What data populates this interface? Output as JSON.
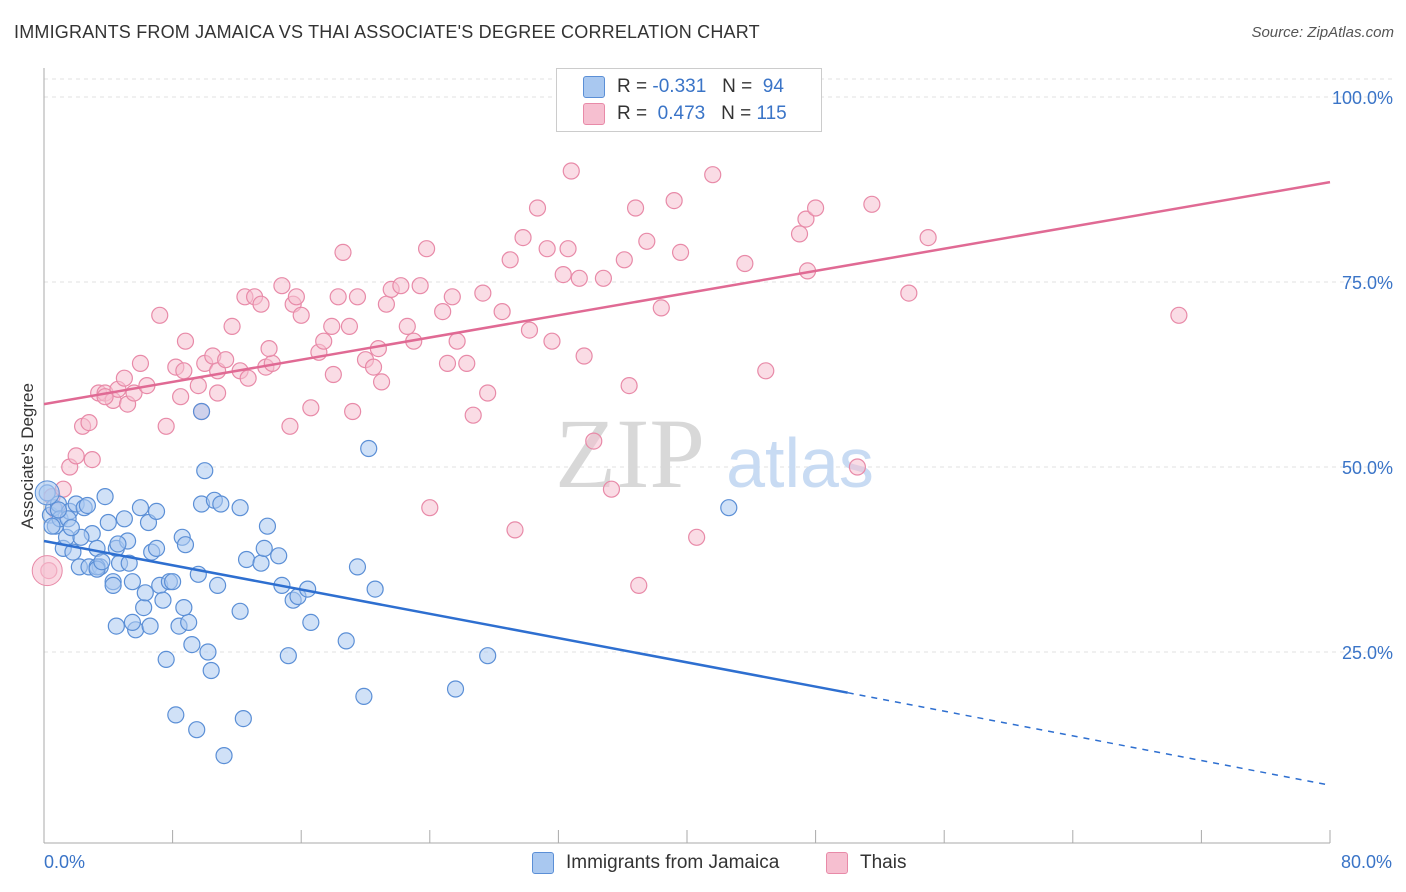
{
  "title": "IMMIGRANTS FROM JAMAICA VS THAI ASSOCIATE'S DEGREE CORRELATION CHART",
  "source": "Source: ZipAtlas.com",
  "watermark": {
    "zip": "ZIP",
    "atlas": "atlas"
  },
  "stats": [
    {
      "r_label": "R =",
      "r_value": "-0.331",
      "n_label": "N =",
      "n_value": "94"
    },
    {
      "r_label": "R =",
      "r_value": " 0.473",
      "n_label": "N =",
      "n_value": "115"
    }
  ],
  "colors": {
    "blue_fill": "#a9c8f0",
    "blue_stroke": "#5b8fd6",
    "blue_line": "#2e6fd0",
    "pink_fill": "#f6bfd0",
    "pink_stroke": "#e88aa8",
    "pink_line": "#e06a94",
    "accent_text": "#3a74c7"
  },
  "chart_data": {
    "type": "scatter",
    "title": "IMMIGRANTS FROM JAMAICA VS THAI ASSOCIATE'S DEGREE CORRELATION CHART",
    "xlabel": "",
    "ylabel": "Associate's Degree",
    "xlim": [
      0,
      80
    ],
    "ylim": [
      0,
      102
    ],
    "x_tick_labels": [
      "0.0%",
      "80.0%"
    ],
    "y_tick_labels": [
      "25.0%",
      "50.0%",
      "75.0%",
      "100.0%"
    ],
    "y_ticks": [
      25,
      50,
      75,
      100
    ],
    "grid": true,
    "legend_position": "bottom",
    "series": [
      {
        "name": "Immigrants from Jamaica",
        "color": "#5b8fd6",
        "trend": {
          "x": [
            0,
            50
          ],
          "y": [
            40,
            19.5
          ],
          "dashed_to": [
            80,
            7
          ]
        },
        "points": [
          [
            0.2,
            46.5
          ],
          [
            0.4,
            43.5
          ],
          [
            0.6,
            44.5
          ],
          [
            0.7,
            42
          ],
          [
            0.9,
            45
          ],
          [
            1.0,
            43
          ],
          [
            1.2,
            39
          ],
          [
            1.4,
            40.5
          ],
          [
            1.6,
            44
          ],
          [
            1.8,
            38.5
          ],
          [
            2.0,
            45
          ],
          [
            2.2,
            36.5
          ],
          [
            2.5,
            44.5
          ],
          [
            2.8,
            36.5
          ],
          [
            3.0,
            41
          ],
          [
            3.3,
            39
          ],
          [
            3.5,
            36.5
          ],
          [
            3.8,
            46
          ],
          [
            4.0,
            42.5
          ],
          [
            4.3,
            34.5
          ],
          [
            4.5,
            39
          ],
          [
            4.7,
            37
          ],
          [
            5.0,
            43
          ],
          [
            5.2,
            40
          ],
          [
            5.5,
            34.5
          ],
          [
            5.7,
            28
          ],
          [
            6.0,
            44.5
          ],
          [
            6.2,
            31
          ],
          [
            6.5,
            42.5
          ],
          [
            6.7,
            38.5
          ],
          [
            7.0,
            44
          ],
          [
            7.2,
            34
          ],
          [
            7.4,
            32
          ],
          [
            7.6,
            24
          ],
          [
            7.8,
            34.5
          ],
          [
            8.0,
            34.5
          ],
          [
            8.2,
            16.5
          ],
          [
            8.4,
            28.5
          ],
          [
            8.6,
            40.5
          ],
          [
            8.8,
            39.5
          ],
          [
            9.0,
            29
          ],
          [
            9.2,
            26
          ],
          [
            9.6,
            35.5
          ],
          [
            9.8,
            45
          ],
          [
            10.0,
            49.5
          ],
          [
            10.2,
            25
          ],
          [
            10.4,
            22.5
          ],
          [
            10.6,
            45.5
          ],
          [
            10.8,
            34
          ],
          [
            11.0,
            45
          ],
          [
            11.2,
            11
          ],
          [
            12.2,
            30.5
          ],
          [
            12.4,
            16
          ],
          [
            12.6,
            37.5
          ],
          [
            13.5,
            37
          ],
          [
            13.7,
            39
          ],
          [
            13.9,
            42
          ],
          [
            14.6,
            38
          ],
          [
            14.8,
            34
          ],
          [
            15.5,
            32
          ],
          [
            15.8,
            32.5
          ],
          [
            16.4,
            33.5
          ],
          [
            16.6,
            29
          ],
          [
            18.8,
            26.5
          ],
          [
            19.5,
            36.5
          ],
          [
            19.9,
            19
          ],
          [
            20.2,
            52.5
          ],
          [
            20.6,
            33.5
          ],
          [
            25.6,
            20
          ],
          [
            27.6,
            24.5
          ],
          [
            42.6,
            44.5
          ],
          [
            9.5,
            14.5
          ],
          [
            6.6,
            28.5
          ],
          [
            4.3,
            34
          ],
          [
            3.3,
            36.5
          ],
          [
            5.3,
            37
          ],
          [
            1.5,
            43
          ],
          [
            2.3,
            40.5
          ],
          [
            4.5,
            28.5
          ],
          [
            7.0,
            39
          ],
          [
            5.5,
            29
          ],
          [
            9.8,
            57.5
          ],
          [
            12.2,
            44.5
          ],
          [
            15.2,
            24.5
          ],
          [
            3.3,
            36.2
          ],
          [
            6.3,
            33
          ],
          [
            8.7,
            31
          ],
          [
            2.7,
            44.8
          ],
          [
            0.9,
            44.2
          ],
          [
            1.7,
            41.8
          ],
          [
            0.5,
            42
          ],
          [
            4.6,
            39.6
          ],
          [
            3.6,
            37.2
          ]
        ]
      },
      {
        "name": "Thais",
        "color": "#e88aa8",
        "trend": {
          "x": [
            0,
            80
          ],
          "y": [
            58.5,
            88.5
          ]
        },
        "points": [
          [
            0.3,
            36
          ],
          [
            0.5,
            46
          ],
          [
            0.8,
            44
          ],
          [
            1.2,
            47
          ],
          [
            1.6,
            50
          ],
          [
            2.0,
            51.5
          ],
          [
            2.4,
            55.5
          ],
          [
            2.8,
            56
          ],
          [
            3.0,
            51
          ],
          [
            3.4,
            60
          ],
          [
            3.8,
            60
          ],
          [
            4.3,
            59
          ],
          [
            4.6,
            60.5
          ],
          [
            5.0,
            62
          ],
          [
            5.2,
            58.5
          ],
          [
            5.6,
            60
          ],
          [
            6.0,
            64
          ],
          [
            6.4,
            61
          ],
          [
            7.2,
            70.5
          ],
          [
            7.6,
            55.5
          ],
          [
            8.2,
            63.5
          ],
          [
            8.7,
            63
          ],
          [
            8.8,
            67
          ],
          [
            9.6,
            61
          ],
          [
            9.8,
            57.5
          ],
          [
            10.0,
            64
          ],
          [
            10.5,
            65
          ],
          [
            10.8,
            63
          ],
          [
            11.3,
            64.5
          ],
          [
            11.7,
            69
          ],
          [
            12.2,
            63
          ],
          [
            12.5,
            73
          ],
          [
            12.7,
            62
          ],
          [
            13.1,
            73
          ],
          [
            13.5,
            72
          ],
          [
            13.8,
            63.5
          ],
          [
            14.2,
            64
          ],
          [
            14.8,
            74.5
          ],
          [
            15.3,
            55.5
          ],
          [
            15.5,
            72
          ],
          [
            15.7,
            73
          ],
          [
            16.0,
            70.5
          ],
          [
            16.6,
            58
          ],
          [
            17.1,
            65.5
          ],
          [
            17.4,
            67
          ],
          [
            17.9,
            69
          ],
          [
            18.3,
            73
          ],
          [
            18.6,
            79
          ],
          [
            19.0,
            69
          ],
          [
            19.2,
            57.5
          ],
          [
            19.5,
            73
          ],
          [
            20.0,
            64.5
          ],
          [
            20.5,
            63.5
          ],
          [
            20.8,
            66
          ],
          [
            21.3,
            72
          ],
          [
            21.6,
            74
          ],
          [
            22.2,
            74.5
          ],
          [
            22.6,
            69
          ],
          [
            23.0,
            67
          ],
          [
            23.4,
            74.5
          ],
          [
            23.8,
            79.5
          ],
          [
            24.0,
            44.5
          ],
          [
            24.8,
            71
          ],
          [
            25.1,
            64
          ],
          [
            25.4,
            73
          ],
          [
            25.7,
            67
          ],
          [
            26.3,
            64
          ],
          [
            26.7,
            57
          ],
          [
            27.3,
            73.5
          ],
          [
            27.6,
            60
          ],
          [
            28.5,
            71
          ],
          [
            29.0,
            78
          ],
          [
            29.3,
            41.5
          ],
          [
            29.8,
            81
          ],
          [
            30.2,
            68.5
          ],
          [
            30.7,
            85
          ],
          [
            31.3,
            79.5
          ],
          [
            31.6,
            67
          ],
          [
            32.3,
            76
          ],
          [
            32.6,
            79.5
          ],
          [
            32.8,
            90
          ],
          [
            33.3,
            75.5
          ],
          [
            33.6,
            65
          ],
          [
            34.2,
            53.5
          ],
          [
            34.8,
            75.5
          ],
          [
            35.3,
            47
          ],
          [
            36.1,
            78
          ],
          [
            36.4,
            61
          ],
          [
            36.8,
            85
          ],
          [
            37.0,
            34
          ],
          [
            37.5,
            80.5
          ],
          [
            38.4,
            71.5
          ],
          [
            39.2,
            86
          ],
          [
            39.6,
            79
          ],
          [
            40.6,
            40.5
          ],
          [
            41.6,
            89.5
          ],
          [
            43.6,
            77.5
          ],
          [
            44.9,
            63
          ],
          [
            47.0,
            81.5
          ],
          [
            47.4,
            83.5
          ],
          [
            47.5,
            76.5
          ],
          [
            48.0,
            85
          ],
          [
            50.6,
            50
          ],
          [
            51.5,
            85.5
          ],
          [
            53.8,
            73.5
          ],
          [
            55.0,
            81
          ],
          [
            70.6,
            70.5
          ],
          [
            18.0,
            62.5
          ],
          [
            10.8,
            60
          ],
          [
            14.0,
            66
          ],
          [
            3.8,
            59.5
          ],
          [
            21.0,
            61.5
          ],
          [
            8.5,
            59.5
          ]
        ]
      }
    ]
  },
  "legend": [
    {
      "label": "Immigrants from Jamaica"
    },
    {
      "label": "Thais"
    }
  ]
}
